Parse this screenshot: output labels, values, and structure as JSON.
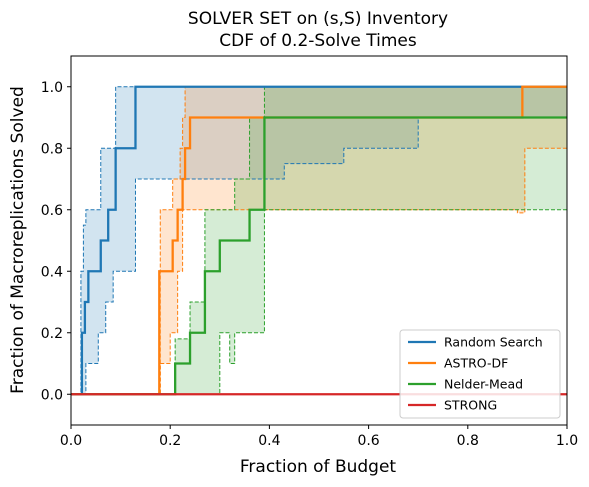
{
  "chart_data": {
    "type": "line",
    "title": [
      "SOLVER SET on (s,S) Inventory",
      "CDF of 0.2-Solve Times"
    ],
    "xlabel": "Fraction of Budget",
    "ylabel": "Fraction of Macroreplications Solved",
    "xlim": [
      0,
      1
    ],
    "ylim": [
      -0.1,
      1.1
    ],
    "xticks": [
      0.0,
      0.2,
      0.4,
      0.6,
      0.8,
      1.0
    ],
    "xtick_labels": [
      "0.0",
      "0.2",
      "0.4",
      "0.6",
      "0.8",
      "1.0"
    ],
    "yticks": [
      0.0,
      0.2,
      0.4,
      0.6,
      0.8,
      1.0
    ],
    "ytick_labels": [
      "0.0",
      "0.2",
      "0.4",
      "0.6",
      "0.8",
      "1.0"
    ],
    "grid": false,
    "legend_position": "lower-right",
    "series": [
      {
        "name": "Random Search",
        "color": "#1f77b4",
        "step_x": [
          0.0,
          0.022,
          0.028,
          0.035,
          0.045,
          0.06,
          0.075,
          0.09,
          0.13,
          1.0
        ],
        "step_y": [
          0.0,
          0.2,
          0.3,
          0.4,
          0.4,
          0.5,
          0.6,
          0.8,
          1.0,
          1.0
        ],
        "band_upper_x": [
          0.0,
          0.02,
          0.025,
          0.03,
          0.04,
          0.06,
          0.085,
          0.09,
          1.0
        ],
        "band_upper_y": [
          0.0,
          0.4,
          0.55,
          0.6,
          0.6,
          0.8,
          0.8,
          1.0,
          1.0
        ],
        "band_lower_x": [
          0.0,
          0.028,
          0.03,
          0.055,
          0.07,
          0.085,
          0.13,
          0.16,
          0.25,
          0.4,
          0.43,
          0.55,
          0.7,
          1.0
        ],
        "band_lower_y": [
          0.0,
          0.0,
          0.1,
          0.2,
          0.3,
          0.4,
          0.7,
          0.7,
          0.7,
          0.7,
          0.75,
          0.8,
          0.9,
          0.9
        ]
      },
      {
        "name": "ASTRO-DF",
        "color": "#ff7f0e",
        "step_x": [
          0.0,
          0.178,
          0.205,
          0.215,
          0.22,
          0.225,
          0.23,
          0.24,
          0.91,
          1.0
        ],
        "step_y": [
          0.0,
          0.4,
          0.5,
          0.6,
          0.6,
          0.7,
          0.8,
          0.9,
          1.0,
          1.0
        ],
        "band_upper_x": [
          0.0,
          0.18,
          0.205,
          0.215,
          0.22,
          0.225,
          0.23,
          0.25,
          0.91,
          1.0
        ],
        "band_upper_y": [
          0.0,
          0.6,
          0.7,
          0.7,
          0.8,
          0.9,
          1.0,
          1.0,
          1.0,
          1.0
        ],
        "band_lower_x": [
          0.0,
          0.18,
          0.2,
          0.215,
          0.225,
          0.235,
          0.25,
          0.9,
          0.91,
          0.915,
          1.0
        ],
        "band_lower_y": [
          0.0,
          0.1,
          0.2,
          0.4,
          0.6,
          0.6,
          0.6,
          0.59,
          0.59,
          0.8,
          0.8
        ]
      },
      {
        "name": "Nelder-Mead",
        "color": "#2ca02c",
        "step_x": [
          0.0,
          0.21,
          0.24,
          0.27,
          0.3,
          0.36,
          0.39,
          1.0
        ],
        "step_y": [
          0.0,
          0.1,
          0.2,
          0.4,
          0.5,
          0.6,
          0.9,
          0.9
        ],
        "band_upper_x": [
          0.0,
          0.21,
          0.24,
          0.27,
          0.3,
          0.33,
          0.36,
          0.39,
          1.0
        ],
        "band_upper_y": [
          0.0,
          0.18,
          0.3,
          0.6,
          0.6,
          0.7,
          0.9,
          1.0,
          1.0
        ],
        "band_lower_x": [
          0.0,
          0.27,
          0.3,
          0.32,
          0.33,
          0.39,
          1.0
        ],
        "band_lower_y": [
          0.0,
          0.0,
          0.2,
          0.1,
          0.2,
          0.6,
          0.6
        ]
      },
      {
        "name": "STRONG",
        "color": "#d62728",
        "step_x": [
          0.0,
          1.0
        ],
        "step_y": [
          0.0,
          0.0
        ],
        "band_upper_x": [],
        "band_upper_y": [],
        "band_lower_x": [],
        "band_lower_y": []
      }
    ]
  }
}
